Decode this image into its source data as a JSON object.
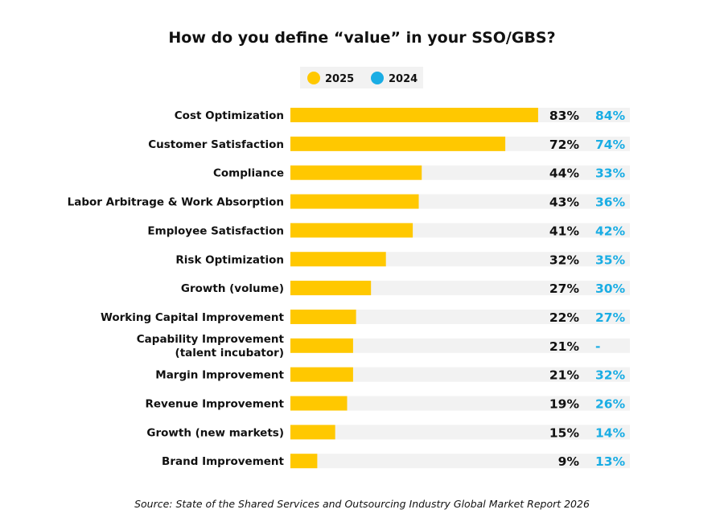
{
  "chart_data": {
    "type": "bar",
    "orientation": "horizontal",
    "title": "How do you define “value” in your SSO/GBS?",
    "source": "Source: State of the Shared Services and Outsourcing Industry Global Market Report 2026",
    "legend": {
      "placement": "top-center",
      "entries": [
        "2025",
        "2024"
      ]
    },
    "colors": {
      "2025": "#FFC800",
      "2024": "#1AADE4",
      "track": "#F2F2F2",
      "legend_bg": "#F2F2F2"
    },
    "categories": [
      [
        "Cost Optimization"
      ],
      [
        "Customer Satisfaction"
      ],
      [
        "Compliance"
      ],
      [
        "Labor Arbitrage & Work Absorption"
      ],
      [
        "Employee Satisfaction"
      ],
      [
        "Risk Optimization"
      ],
      [
        "Growth (volume)"
      ],
      [
        "Working Capital Improvement"
      ],
      [
        "Capability Improvement",
        "(talent incubator)"
      ],
      [
        "Margin Improvement"
      ],
      [
        "Revenue Improvement"
      ],
      [
        "Growth (new markets)"
      ],
      [
        "Brand Improvement"
      ]
    ],
    "series": [
      {
        "name": "2025",
        "values": [
          83,
          72,
          44,
          43,
          41,
          32,
          27,
          22,
          21,
          21,
          19,
          15,
          9
        ],
        "labels": [
          "83%",
          "72%",
          "44%",
          "43%",
          "41%",
          "32%",
          "27%",
          "22%",
          "21%",
          "21%",
          "19%",
          "15%",
          "9%"
        ]
      },
      {
        "name": "2024",
        "values": [
          84,
          74,
          33,
          36,
          42,
          35,
          30,
          27,
          null,
          32,
          26,
          14,
          13
        ],
        "labels": [
          "84%",
          "74%",
          "33%",
          "36%",
          "42%",
          "35%",
          "30%",
          "27%",
          "-",
          "32%",
          "26%",
          "14%",
          "13%"
        ]
      }
    ],
    "grid": false
  }
}
